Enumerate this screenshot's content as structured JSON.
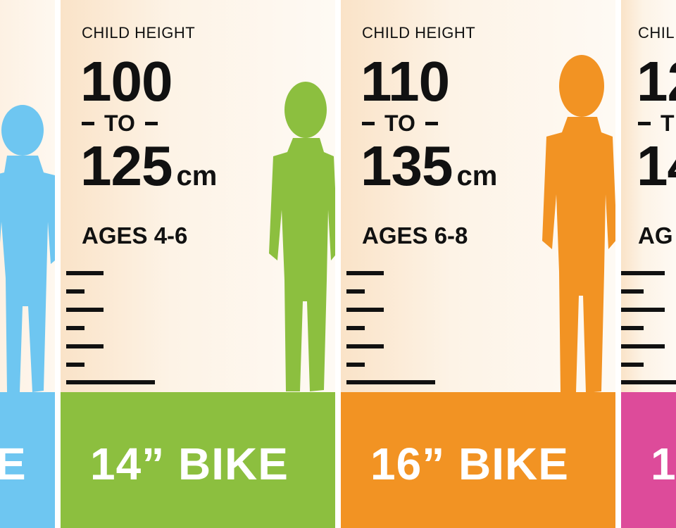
{
  "panels": [
    {
      "height_label": "",
      "from": "",
      "to_word": "",
      "until": "",
      "unit": "",
      "ages": "",
      "bike_label": "E",
      "color": "#6ec6f1"
    },
    {
      "height_label": "CHILD HEIGHT",
      "from": "100",
      "to_word": "TO",
      "until": "125",
      "unit": "cm",
      "ages": "AGES 4-6",
      "bike_label": "14” BIKE",
      "color": "#8cbf3f"
    },
    {
      "height_label": "CHILD HEIGHT",
      "from": "110",
      "to_word": "TO",
      "until": "135",
      "unit": "cm",
      "ages": "AGES 6-8",
      "bike_label": "16” BIKE",
      "color": "#f29323"
    },
    {
      "height_label": "CHIL",
      "from": "12",
      "to_word": "T",
      "until": "14",
      "unit": "",
      "ages": "AG",
      "bike_label": "1",
      "color": "#dd4b9a"
    }
  ]
}
